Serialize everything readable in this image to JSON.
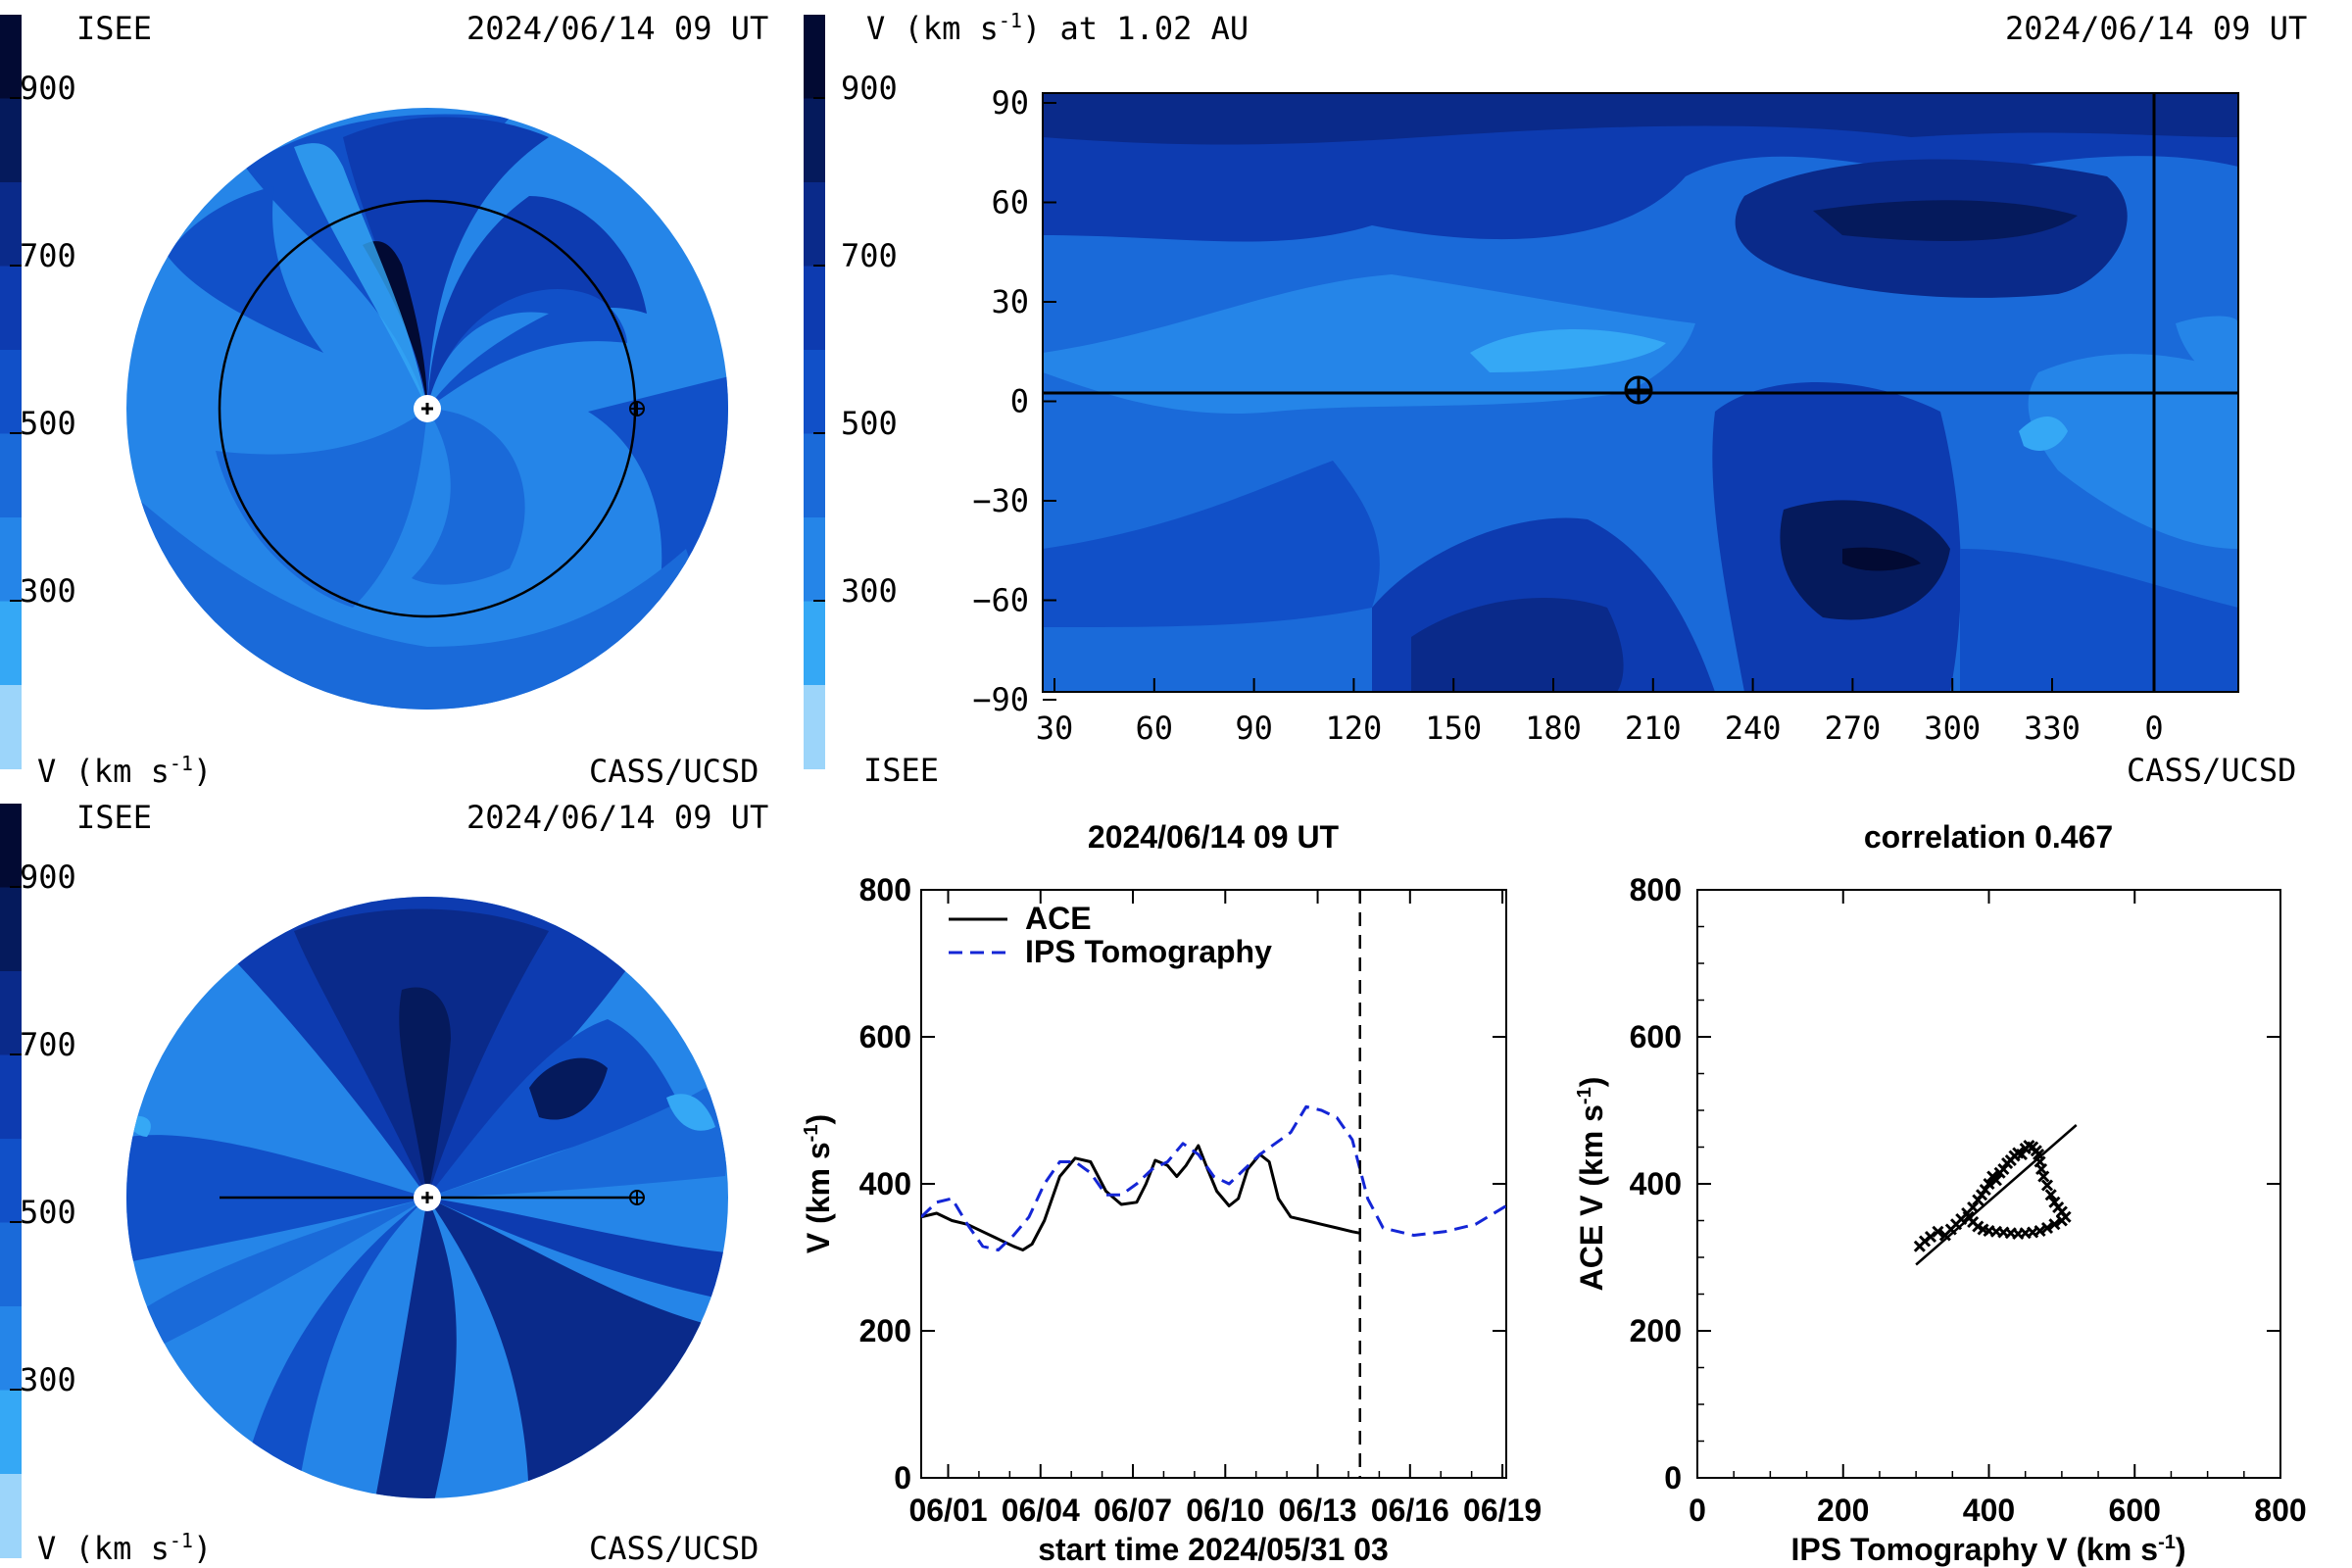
{
  "colors": {
    "v_900_plus": "#020a33",
    "v_800": "#051a5c",
    "v_700": "#0a2a8a",
    "v_600": "#0d3bb0",
    "v_500": "#1150c8",
    "v_400": "#1a6ad9",
    "v_300": "#2585e8",
    "v_200": "#35a8f5",
    "v_100": "#9cd5fa",
    "ips": "#1426d6"
  },
  "colorbar": {
    "ticks": [
      "900",
      "700",
      "500",
      "300"
    ]
  },
  "panel_top_left": {
    "org": "ISEE",
    "time": "2024/06/14 09 UT",
    "unit_label": "V (km s",
    "unit_sup": "-1",
    "credit": "CASS/UCSD"
  },
  "panel_top_right": {
    "title": "V (km s",
    "title_sup": "-1",
    "title_tail": ") at 1.02 AU",
    "time": "2024/06/14 09 UT",
    "org": "ISEE",
    "credit": "CASS/UCSD",
    "x_ticks": [
      "30",
      "60",
      "90",
      "120",
      "150",
      "180",
      "210",
      "240",
      "270",
      "300",
      "330",
      "0"
    ],
    "y_ticks": [
      "90",
      "60",
      "30",
      "0",
      "−30",
      "−60",
      "−90"
    ]
  },
  "panel_bottom_left": {
    "org": "ISEE",
    "time": "2024/06/14 09 UT",
    "unit_label": "V (km s",
    "unit_sup": "-1",
    "credit": "CASS/UCSD"
  },
  "chart_data": [
    {
      "type": "line",
      "title": "2024/06/14 09 UT",
      "xlabel": "start time 2024/05/31 03",
      "ylabel": "V (km s-1)",
      "x_tick_labels": [
        "06/01",
        "06/04",
        "06/07",
        "06/10",
        "06/13",
        "06/16",
        "06/19"
      ],
      "x_tick_days": [
        0.875,
        3.875,
        6.875,
        9.875,
        12.875,
        15.875,
        18.875
      ],
      "xlim_days": [
        0,
        19
      ],
      "ylim": [
        0,
        800
      ],
      "y_ticks": [
        0,
        200,
        400,
        600,
        800
      ],
      "current_time_day": 14.25,
      "legend": "top-left",
      "series": [
        {
          "name": "ACE",
          "style": "solid",
          "x": [
            0,
            0.5,
            1,
            1.5,
            2,
            2.5,
            3,
            3.3,
            3.6,
            4,
            4.5,
            5,
            5.5,
            6,
            6.5,
            7,
            7.3,
            7.6,
            8,
            8.3,
            8.6,
            9,
            9.3,
            9.6,
            10,
            10.3,
            10.6,
            11,
            11.3,
            11.6,
            12,
            12.5,
            13,
            13.5,
            14,
            14.25
          ],
          "y": [
            355,
            360,
            350,
            345,
            335,
            325,
            315,
            310,
            318,
            350,
            410,
            435,
            430,
            390,
            372,
            375,
            400,
            432,
            425,
            410,
            425,
            452,
            420,
            390,
            370,
            380,
            420,
            440,
            430,
            380,
            355,
            350,
            345,
            340,
            335,
            333
          ]
        },
        {
          "name": "IPS Tomography",
          "style": "dashed",
          "x": [
            0,
            0.5,
            1,
            1.5,
            2,
            2.5,
            3,
            3.5,
            4,
            4.5,
            5,
            5.5,
            6,
            6.5,
            7,
            7.5,
            8,
            8.5,
            9,
            9.5,
            10,
            10.5,
            11,
            11.5,
            12,
            12.5,
            13,
            13.5,
            14,
            14.5,
            15,
            16,
            17,
            18,
            19
          ],
          "y": [
            355,
            375,
            380,
            345,
            315,
            310,
            330,
            355,
            400,
            430,
            430,
            415,
            385,
            385,
            400,
            420,
            430,
            455,
            440,
            410,
            400,
            420,
            440,
            455,
            470,
            505,
            500,
            490,
            460,
            380,
            340,
            330,
            335,
            345,
            370
          ]
        }
      ]
    },
    {
      "type": "scatter",
      "title": "correlation 0.467",
      "xlabel": "IPS Tomography V (km s-1)",
      "ylabel": "ACE V (km s-1)",
      "xlim": [
        0,
        800
      ],
      "ylim": [
        0,
        800
      ],
      "x_ticks": [
        0,
        200,
        400,
        600,
        800
      ],
      "y_ticks": [
        0,
        200,
        400,
        600,
        800
      ],
      "fit_line": {
        "x": [
          300,
          520
        ],
        "y": [
          290,
          480
        ]
      },
      "x": [
        305,
        312,
        320,
        330,
        340,
        348,
        355,
        362,
        370,
        378,
        385,
        390,
        395,
        400,
        405,
        410,
        415,
        420,
        425,
        430,
        435,
        440,
        445,
        450,
        455,
        460,
        465,
        468,
        470,
        472,
        475,
        480,
        485,
        490,
        495,
        500,
        505,
        500,
        490,
        480,
        470,
        460,
        450,
        440,
        430,
        420,
        410,
        400,
        392,
        385,
        378,
        372
      ],
      "y": [
        315,
        322,
        328,
        335,
        330,
        338,
        345,
        352,
        360,
        368,
        378,
        385,
        392,
        400,
        410,
        405,
        415,
        420,
        428,
        432,
        438,
        442,
        440,
        448,
        452,
        450,
        445,
        440,
        430,
        420,
        410,
        398,
        385,
        375,
        368,
        362,
        355,
        350,
        345,
        340,
        336,
        334,
        333,
        332,
        333,
        334,
        335,
        336,
        338,
        342,
        348,
        355
      ]
    }
  ],
  "line_chart_text": {
    "title": "2024/06/14 09 UT",
    "xlabel": "start time 2024/05/31 03",
    "ylabel": "V (km s",
    "ylabel_sup": "-1",
    "ylabel_tail": ")",
    "legend_ace": "ACE",
    "legend_ips": "IPS Tomography",
    "y_ticks": [
      "0",
      "200",
      "400",
      "600",
      "800"
    ],
    "x_ticks": [
      "06/01",
      "06/04",
      "06/07",
      "06/10",
      "06/13",
      "06/16",
      "06/19"
    ]
  },
  "scatter_text": {
    "title": "correlation 0.467",
    "xlabel": "IPS Tomography V (km s",
    "xlabel_sup": "-1",
    "xlabel_tail": ")",
    "ylabel": "ACE V (km s",
    "ylabel_sup": "-1",
    "ylabel_tail": ")",
    "x_ticks": [
      "0",
      "200",
      "400",
      "600",
      "800"
    ],
    "y_ticks": [
      "0",
      "200",
      "400",
      "600",
      "800"
    ]
  }
}
